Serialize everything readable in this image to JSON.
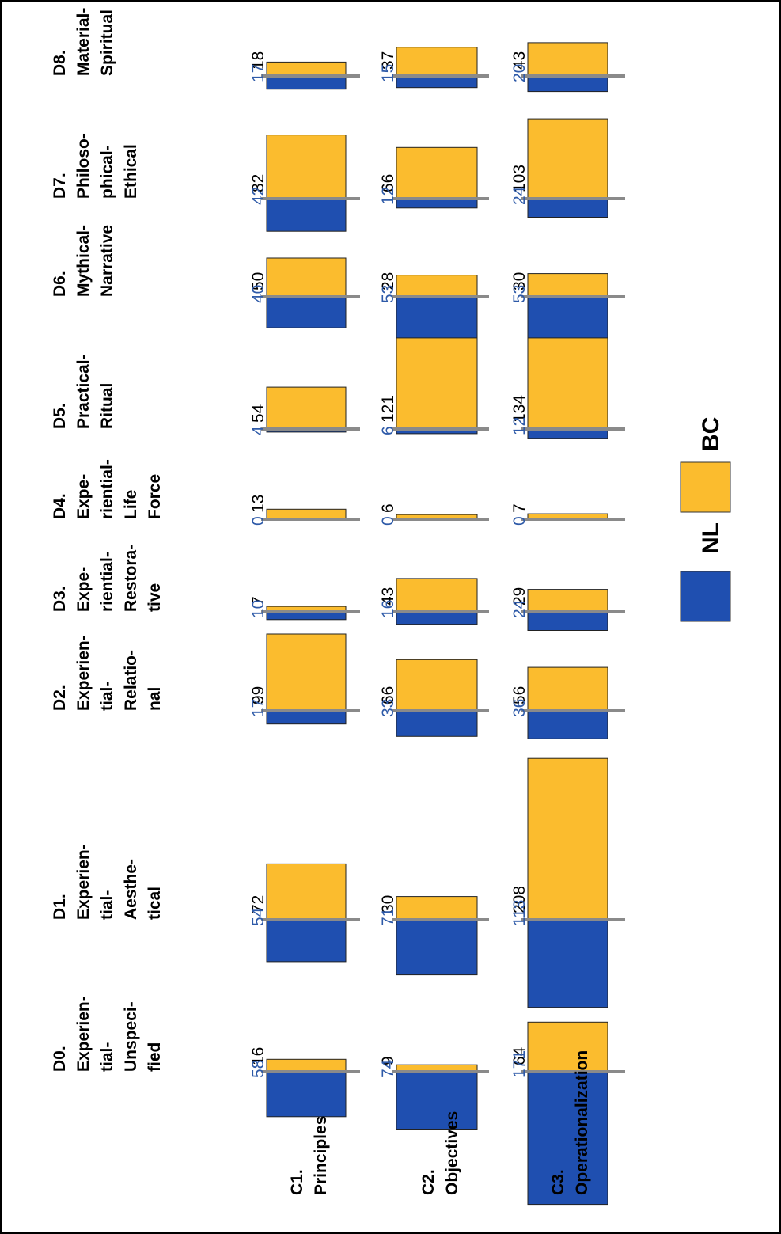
{
  "chart_data": {
    "type": "bar",
    "orientation": "rotated",
    "legend": {
      "placement": "right",
      "entries": [
        {
          "name": "NL",
          "color": "#1f4fb0"
        },
        {
          "name": "BC",
          "color": "#fbbc2e"
        }
      ]
    },
    "dimensions": [
      [
        "D0.",
        "Experien-",
        "tial-",
        "Unspeci-",
        "fied"
      ],
      [
        "D1.",
        "Experien-",
        "tial-",
        "Aesthe-",
        "tical"
      ],
      [
        "D2.",
        "Experien-",
        "tial-",
        "Relatio-",
        "nal"
      ],
      [
        "D3.",
        "Expe-",
        "riential-",
        "Restora-",
        "tive"
      ],
      [
        "D4.",
        "Expe-",
        "riential-",
        "Life",
        "Force"
      ],
      [
        "D5.",
        "Practical-",
        "Ritual"
      ],
      [
        "D6.",
        "Mythical-",
        "Narrative"
      ],
      [
        "D7.",
        "Philoso-",
        "phical-",
        "Ethical"
      ],
      [
        "D8.",
        "Material-",
        "Spiritual"
      ]
    ],
    "categories": [
      [
        "C1.",
        "Principles"
      ],
      [
        "C2.",
        "Objectives"
      ],
      [
        "C3.",
        "Operationalization"
      ]
    ],
    "series": [
      {
        "name": "BC",
        "color": "#fbbc2e",
        "values": [
          [
            16,
            72,
            99,
            7,
            13,
            54,
            50,
            82,
            18
          ],
          [
            9,
            30,
            66,
            43,
            6,
            121,
            28,
            66,
            37
          ],
          [
            64,
            208,
            56,
            29,
            7,
            134,
            30,
            103,
            43
          ]
        ]
      },
      {
        "name": "NL",
        "color": "#1f4fb0",
        "values": [
          [
            58,
            54,
            17,
            10,
            0,
            4,
            40,
            42,
            17
          ],
          [
            74,
            71,
            33,
            16,
            0,
            6,
            53,
            12,
            15
          ],
          [
            171,
            113,
            36,
            24,
            0,
            12,
            53,
            24,
            20
          ]
        ]
      }
    ]
  }
}
